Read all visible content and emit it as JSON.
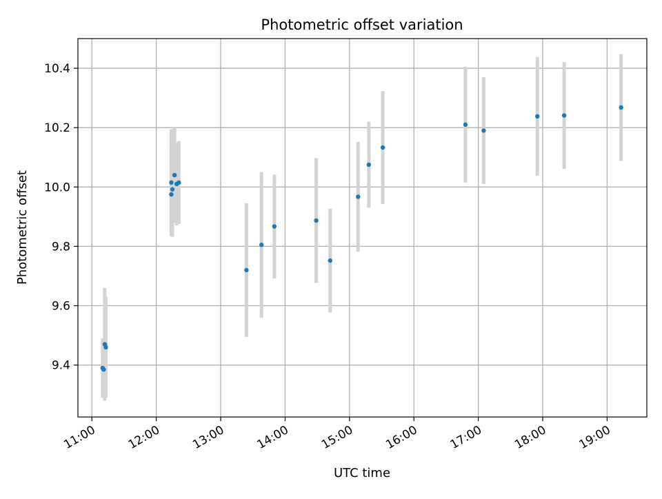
{
  "chart_data": {
    "type": "scatter",
    "title": "Photometric offset variation",
    "xlabel": "UTC time",
    "ylabel": "Photometric offset",
    "xlim": [
      "10:47",
      "19:37"
    ],
    "ylim": [
      9.225,
      10.5
    ],
    "x_ticks": [
      "11:00",
      "12:00",
      "13:00",
      "14:00",
      "15:00",
      "16:00",
      "17:00",
      "18:00",
      "19:00"
    ],
    "y_ticks": [
      "9.4",
      "9.6",
      "9.8",
      "10.0",
      "10.2",
      "10.4"
    ],
    "grid": true,
    "colors": {
      "marker": "#1f77b4",
      "errorbar": "#d3d3d3",
      "grid": "#b0b0b0"
    },
    "series": [
      {
        "points": [
          {
            "x": "11:10",
            "y": 9.39,
            "err": 0.1
          },
          {
            "x": "11:11",
            "y": 9.385,
            "err": 0.09
          },
          {
            "x": "11:12",
            "y": 9.47,
            "err": 0.19
          },
          {
            "x": "11:13",
            "y": 9.46,
            "err": 0.17
          },
          {
            "x": "12:14",
            "y": 10.015,
            "err": 0.18
          },
          {
            "x": "12:14",
            "y": 9.975,
            "err": 0.14
          },
          {
            "x": "12:15",
            "y": 9.992,
            "err": 0.16
          },
          {
            "x": "12:17",
            "y": 10.04,
            "err": 0.16
          },
          {
            "x": "12:19",
            "y": 10.01,
            "err": 0.14
          },
          {
            "x": "12:21",
            "y": 10.015,
            "err": 0.14
          },
          {
            "x": "13:24",
            "y": 9.72,
            "err": 0.225
          },
          {
            "x": "13:38",
            "y": 9.805,
            "err": 0.245
          },
          {
            "x": "13:50",
            "y": 9.867,
            "err": 0.175
          },
          {
            "x": "14:29",
            "y": 9.887,
            "err": 0.21
          },
          {
            "x": "14:42",
            "y": 9.752,
            "err": 0.175
          },
          {
            "x": "15:08",
            "y": 9.967,
            "err": 0.185
          },
          {
            "x": "15:18",
            "y": 10.075,
            "err": 0.145
          },
          {
            "x": "15:31",
            "y": 10.133,
            "err": 0.19
          },
          {
            "x": "16:48",
            "y": 10.21,
            "err": 0.195
          },
          {
            "x": "17:05",
            "y": 10.19,
            "err": 0.18
          },
          {
            "x": "17:55",
            "y": 10.238,
            "err": 0.2
          },
          {
            "x": "18:20",
            "y": 10.241,
            "err": 0.18
          },
          {
            "x": "19:13",
            "y": 10.268,
            "err": 0.18
          }
        ]
      }
    ]
  }
}
